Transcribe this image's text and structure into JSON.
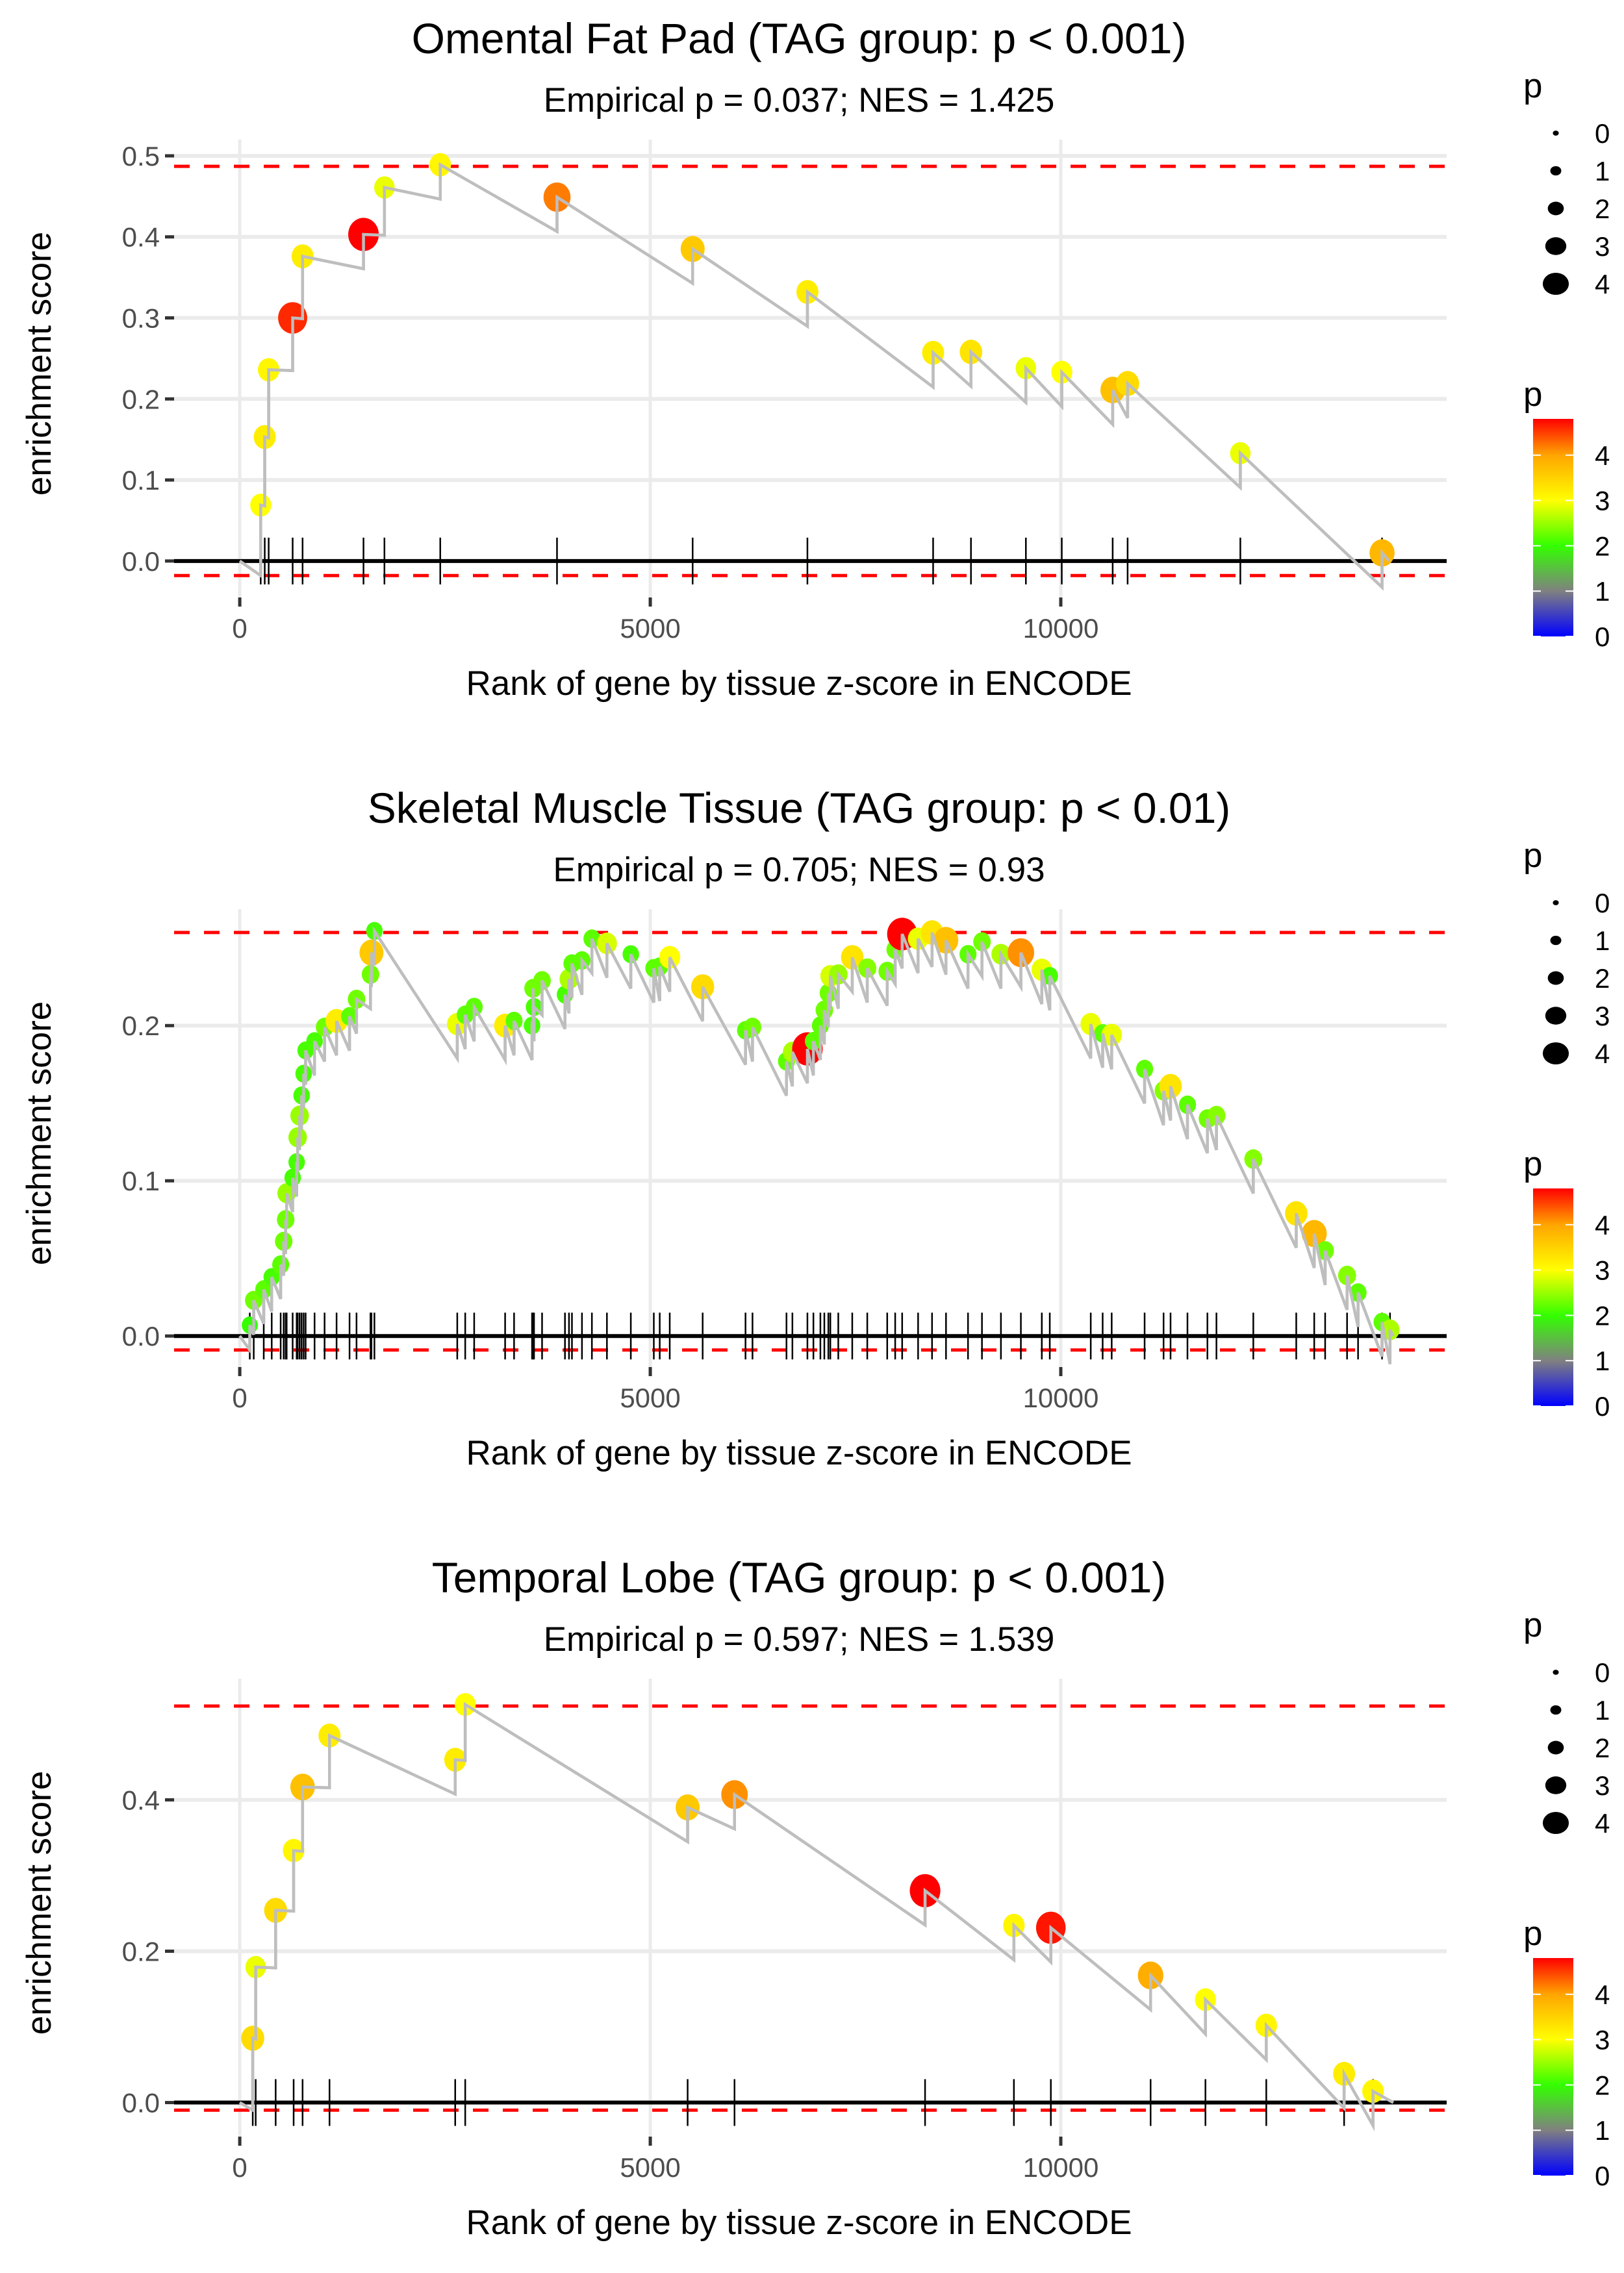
{
  "chart_data": [
    {
      "type": "scatter",
      "title": "Omental Fat Pad (TAG group: p < 0.001)",
      "subtitle": "Empirical p = 0.037; NES = 1.425",
      "xlabel": "Rank of gene by tissue z-score in ENCODE",
      "ylabel": "enrichment score",
      "xlim": [
        -800,
        14700
      ],
      "ylim": [
        -0.045,
        0.52
      ],
      "xticks": [
        0,
        5000,
        10000
      ],
      "xtick_labels": [
        "0",
        "5000",
        "10000"
      ],
      "yticks": [
        0.0,
        0.1,
        0.2,
        0.3,
        0.4,
        0.5
      ],
      "ytick_labels": [
        "0.0",
        "0.1",
        "0.2",
        "0.3",
        "0.4",
        "0.5"
      ],
      "grid": true,
      "max_es_line": 0.487,
      "min_es_line": -0.018,
      "end_rank": 14000,
      "points": [
        {
          "rank": 255,
          "es": 0.069,
          "p": 3.0
        },
        {
          "rank": 304,
          "es": 0.153,
          "p": 3.2
        },
        {
          "rank": 352,
          "es": 0.236,
          "p": 3.1
        },
        {
          "rank": 644,
          "es": 0.3,
          "p": 4.6
        },
        {
          "rank": 765,
          "es": 0.376,
          "p": 3.2
        },
        {
          "rank": 1507,
          "es": 0.403,
          "p": 4.9
        },
        {
          "rank": 1762,
          "es": 0.461,
          "p": 2.9
        },
        {
          "rank": 2442,
          "es": 0.489,
          "p": 3.1
        },
        {
          "rank": 3864,
          "es": 0.449,
          "p": 4.2
        },
        {
          "rank": 5516,
          "es": 0.385,
          "p": 3.6
        },
        {
          "rank": 6914,
          "es": 0.332,
          "p": 3.2
        },
        {
          "rank": 8445,
          "es": 0.257,
          "p": 3.2
        },
        {
          "rank": 8906,
          "es": 0.258,
          "p": 3.3
        },
        {
          "rank": 9575,
          "es": 0.238,
          "p": 2.9
        },
        {
          "rank": 10012,
          "es": 0.233,
          "p": 3.0
        },
        {
          "rank": 10632,
          "es": 0.211,
          "p": 3.7
        },
        {
          "rank": 10814,
          "es": 0.219,
          "p": 3.4
        },
        {
          "rank": 12187,
          "es": 0.133,
          "p": 2.9
        },
        {
          "rank": 13913,
          "es": 0.01,
          "p": 3.8
        }
      ]
    },
    {
      "type": "scatter",
      "title": "Skeletal Muscle Tissue (TAG group: p < 0.01)",
      "subtitle": "Empirical p = 0.705; NES = 0.93",
      "xlabel": "Rank of gene by tissue z-score in ENCODE",
      "ylabel": "enrichment score",
      "xlim": [
        -800,
        14700
      ],
      "ylim": [
        -0.02,
        0.275
      ],
      "xticks": [
        0,
        5000,
        10000
      ],
      "xtick_labels": [
        "0",
        "5000",
        "10000"
      ],
      "yticks": [
        0.0,
        0.1,
        0.2
      ],
      "ytick_labels": [
        "0.0",
        "0.1",
        "0.2"
      ],
      "grid": true,
      "max_es_line": 0.26,
      "min_es_line": -0.009,
      "end_rank": 14050,
      "points": [
        {
          "rank": 122,
          "es": 0.007,
          "p": 2.0
        },
        {
          "rank": 170,
          "es": 0.023,
          "p": 2.3
        },
        {
          "rank": 292,
          "es": 0.03,
          "p": 2.2
        },
        {
          "rank": 389,
          "es": 0.038,
          "p": 2.1
        },
        {
          "rank": 498,
          "es": 0.046,
          "p": 2.2
        },
        {
          "rank": 535,
          "es": 0.061,
          "p": 2.3
        },
        {
          "rank": 559,
          "es": 0.075,
          "p": 2.3
        },
        {
          "rank": 571,
          "es": 0.092,
          "p": 2.5
        },
        {
          "rank": 644,
          "es": 0.102,
          "p": 2.1
        },
        {
          "rank": 693,
          "es": 0.112,
          "p": 2.1
        },
        {
          "rank": 705,
          "es": 0.128,
          "p": 2.5
        },
        {
          "rank": 729,
          "es": 0.142,
          "p": 2.5
        },
        {
          "rank": 753,
          "es": 0.155,
          "p": 2.1
        },
        {
          "rank": 778,
          "es": 0.169,
          "p": 2.1
        },
        {
          "rank": 802,
          "es": 0.184,
          "p": 2.1
        },
        {
          "rank": 911,
          "es": 0.19,
          "p": 2.1
        },
        {
          "rank": 1033,
          "es": 0.199,
          "p": 2.3
        },
        {
          "rank": 1179,
          "es": 0.203,
          "p": 3.2
        },
        {
          "rank": 1337,
          "es": 0.206,
          "p": 2.2
        },
        {
          "rank": 1422,
          "es": 0.217,
          "p": 2.3
        },
        {
          "rank": 1592,
          "es": 0.233,
          "p": 2.3
        },
        {
          "rank": 1604,
          "es": 0.247,
          "p": 3.6
        },
        {
          "rank": 1640,
          "es": 0.261,
          "p": 2.1
        },
        {
          "rank": 2649,
          "es": 0.201,
          "p": 2.9
        },
        {
          "rank": 2746,
          "es": 0.207,
          "p": 2.2
        },
        {
          "rank": 2855,
          "es": 0.212,
          "p": 2.2
        },
        {
          "rank": 3232,
          "es": 0.2,
          "p": 3.2
        },
        {
          "rank": 3341,
          "es": 0.203,
          "p": 2.2
        },
        {
          "rank": 3560,
          "es": 0.2,
          "p": 2.1
        },
        {
          "rank": 3584,
          "es": 0.212,
          "p": 2.1
        },
        {
          "rank": 3572,
          "es": 0.224,
          "p": 2.3
        },
        {
          "rank": 3682,
          "es": 0.229,
          "p": 2.3
        },
        {
          "rank": 3961,
          "es": 0.22,
          "p": 2.1
        },
        {
          "rank": 4010,
          "es": 0.23,
          "p": 2.6
        },
        {
          "rank": 4046,
          "es": 0.24,
          "p": 2.2
        },
        {
          "rank": 4168,
          "es": 0.242,
          "p": 2.2
        },
        {
          "rank": 4289,
          "es": 0.256,
          "p": 2.2
        },
        {
          "rank": 4472,
          "es": 0.253,
          "p": 2.8
        },
        {
          "rank": 4763,
          "es": 0.246,
          "p": 2.1
        },
        {
          "rank": 5043,
          "es": 0.237,
          "p": 2.2
        },
        {
          "rank": 5115,
          "es": 0.238,
          "p": 2.2
        },
        {
          "rank": 5237,
          "es": 0.244,
          "p": 3.0
        },
        {
          "rank": 5638,
          "es": 0.225,
          "p": 3.4
        },
        {
          "rank": 6160,
          "es": 0.197,
          "p": 2.2
        },
        {
          "rank": 6245,
          "es": 0.199,
          "p": 2.3
        },
        {
          "rank": 6659,
          "es": 0.177,
          "p": 2.2
        },
        {
          "rank": 6731,
          "es": 0.183,
          "p": 2.6
        },
        {
          "rank": 6914,
          "es": 0.185,
          "p": 4.9
        },
        {
          "rank": 6987,
          "es": 0.19,
          "p": 2.2
        },
        {
          "rank": 7072,
          "es": 0.2,
          "p": 2.2
        },
        {
          "rank": 7120,
          "es": 0.21,
          "p": 2.3
        },
        {
          "rank": 7169,
          "es": 0.221,
          "p": 2.3
        },
        {
          "rank": 7193,
          "es": 0.232,
          "p": 2.8
        },
        {
          "rank": 7290,
          "es": 0.233,
          "p": 2.5
        },
        {
          "rank": 7460,
          "es": 0.244,
          "p": 3.3
        },
        {
          "rank": 7643,
          "es": 0.237,
          "p": 2.4
        },
        {
          "rank": 7886,
          "es": 0.235,
          "p": 2.3
        },
        {
          "rank": 7983,
          "es": 0.249,
          "p": 2.3
        },
        {
          "rank": 8068,
          "es": 0.259,
          "p": 4.8
        },
        {
          "rank": 8262,
          "es": 0.256,
          "p": 2.9
        },
        {
          "rank": 8432,
          "es": 0.26,
          "p": 3.3
        },
        {
          "rank": 8602,
          "es": 0.255,
          "p": 3.7
        },
        {
          "rank": 8870,
          "es": 0.246,
          "p": 2.2
        },
        {
          "rank": 9040,
          "es": 0.254,
          "p": 2.3
        },
        {
          "rank": 9271,
          "es": 0.246,
          "p": 2.6
        },
        {
          "rank": 9514,
          "es": 0.247,
          "p": 4.1
        },
        {
          "rank": 9769,
          "es": 0.236,
          "p": 2.9
        },
        {
          "rank": 9866,
          "es": 0.232,
          "p": 2.1
        },
        {
          "rank": 10365,
          "es": 0.201,
          "p": 2.9
        },
        {
          "rank": 10510,
          "es": 0.195,
          "p": 2.2
        },
        {
          "rank": 10620,
          "es": 0.194,
          "p": 2.9
        },
        {
          "rank": 11021,
          "es": 0.172,
          "p": 2.2
        },
        {
          "rank": 11252,
          "es": 0.158,
          "p": 2.4
        },
        {
          "rank": 11337,
          "es": 0.161,
          "p": 3.3
        },
        {
          "rank": 11543,
          "es": 0.149,
          "p": 2.2
        },
        {
          "rank": 11786,
          "es": 0.14,
          "p": 2.3
        },
        {
          "rank": 11896,
          "es": 0.142,
          "p": 2.4
        },
        {
          "rank": 12345,
          "es": 0.114,
          "p": 2.4
        },
        {
          "rank": 12868,
          "es": 0.079,
          "p": 3.3
        },
        {
          "rank": 13087,
          "es": 0.066,
          "p": 3.8
        },
        {
          "rank": 13220,
          "es": 0.055,
          "p": 2.3
        },
        {
          "rank": 13487,
          "es": 0.039,
          "p": 2.4
        },
        {
          "rank": 13621,
          "es": 0.028,
          "p": 2.2
        },
        {
          "rank": 13913,
          "es": 0.009,
          "p": 2.2
        },
        {
          "rank": 14010,
          "es": 0.004,
          "p": 2.6
        }
      ]
    },
    {
      "type": "scatter",
      "title": "Temporal Lobe (TAG group: p < 0.001)",
      "subtitle": "Empirical p = 0.597; NES = 1.539",
      "xlabel": "Rank of gene by tissue z-score in ENCODE",
      "ylabel": "enrichment score",
      "xlim": [
        -800,
        14700
      ],
      "ylim": [
        -0.045,
        0.56
      ],
      "xticks": [
        0,
        5000,
        10000
      ],
      "xtick_labels": [
        "0",
        "5000",
        "10000"
      ],
      "yticks": [
        0.0,
        0.2,
        0.4
      ],
      "ytick_labels": [
        "0.0",
        "0.2",
        "0.4"
      ],
      "grid": true,
      "max_es_line": 0.524,
      "min_es_line": -0.01,
      "end_rank": 14050,
      "points": [
        {
          "rank": 158,
          "es": 0.085,
          "p": 3.4
        },
        {
          "rank": 194,
          "es": 0.179,
          "p": 2.9
        },
        {
          "rank": 437,
          "es": 0.254,
          "p": 3.4
        },
        {
          "rank": 656,
          "es": 0.333,
          "p": 3.1
        },
        {
          "rank": 765,
          "es": 0.417,
          "p": 3.7
        },
        {
          "rank": 1093,
          "es": 0.485,
          "p": 3.2
        },
        {
          "rank": 2624,
          "es": 0.453,
          "p": 3.2
        },
        {
          "rank": 2746,
          "es": 0.526,
          "p": 3.0
        },
        {
          "rank": 5455,
          "es": 0.39,
          "p": 3.6
        },
        {
          "rank": 6026,
          "es": 0.407,
          "p": 4.1
        },
        {
          "rank": 8347,
          "es": 0.28,
          "p": 4.9
        },
        {
          "rank": 9429,
          "es": 0.234,
          "p": 3.1
        },
        {
          "rank": 9879,
          "es": 0.231,
          "p": 4.7
        },
        {
          "rank": 11094,
          "es": 0.168,
          "p": 3.9
        },
        {
          "rank": 11762,
          "es": 0.136,
          "p": 3.0
        },
        {
          "rank": 12503,
          "es": 0.102,
          "p": 3.1
        },
        {
          "rank": 13451,
          "es": 0.038,
          "p": 3.2
        },
        {
          "rank": 13803,
          "es": 0.015,
          "p": 3.1
        }
      ]
    }
  ],
  "legends": {
    "size_title": "p",
    "size_labels": [
      "0",
      "1",
      "2",
      "3",
      "4"
    ],
    "color_title": "p",
    "color_labels": [
      "4",
      "3",
      "2",
      "1",
      "0"
    ],
    "color_scale": [
      "#0000ff",
      "#808080",
      "#33ff00",
      "#ffff00",
      "#ffa500",
      "#ff0000"
    ],
    "color_range": [
      0,
      4.8
    ]
  },
  "colors": {
    "grid": "#ebebeb",
    "curve": "#bebebe",
    "zero_line": "#000000",
    "es_bound_line": "#ff0000",
    "rug": "#000000"
  }
}
